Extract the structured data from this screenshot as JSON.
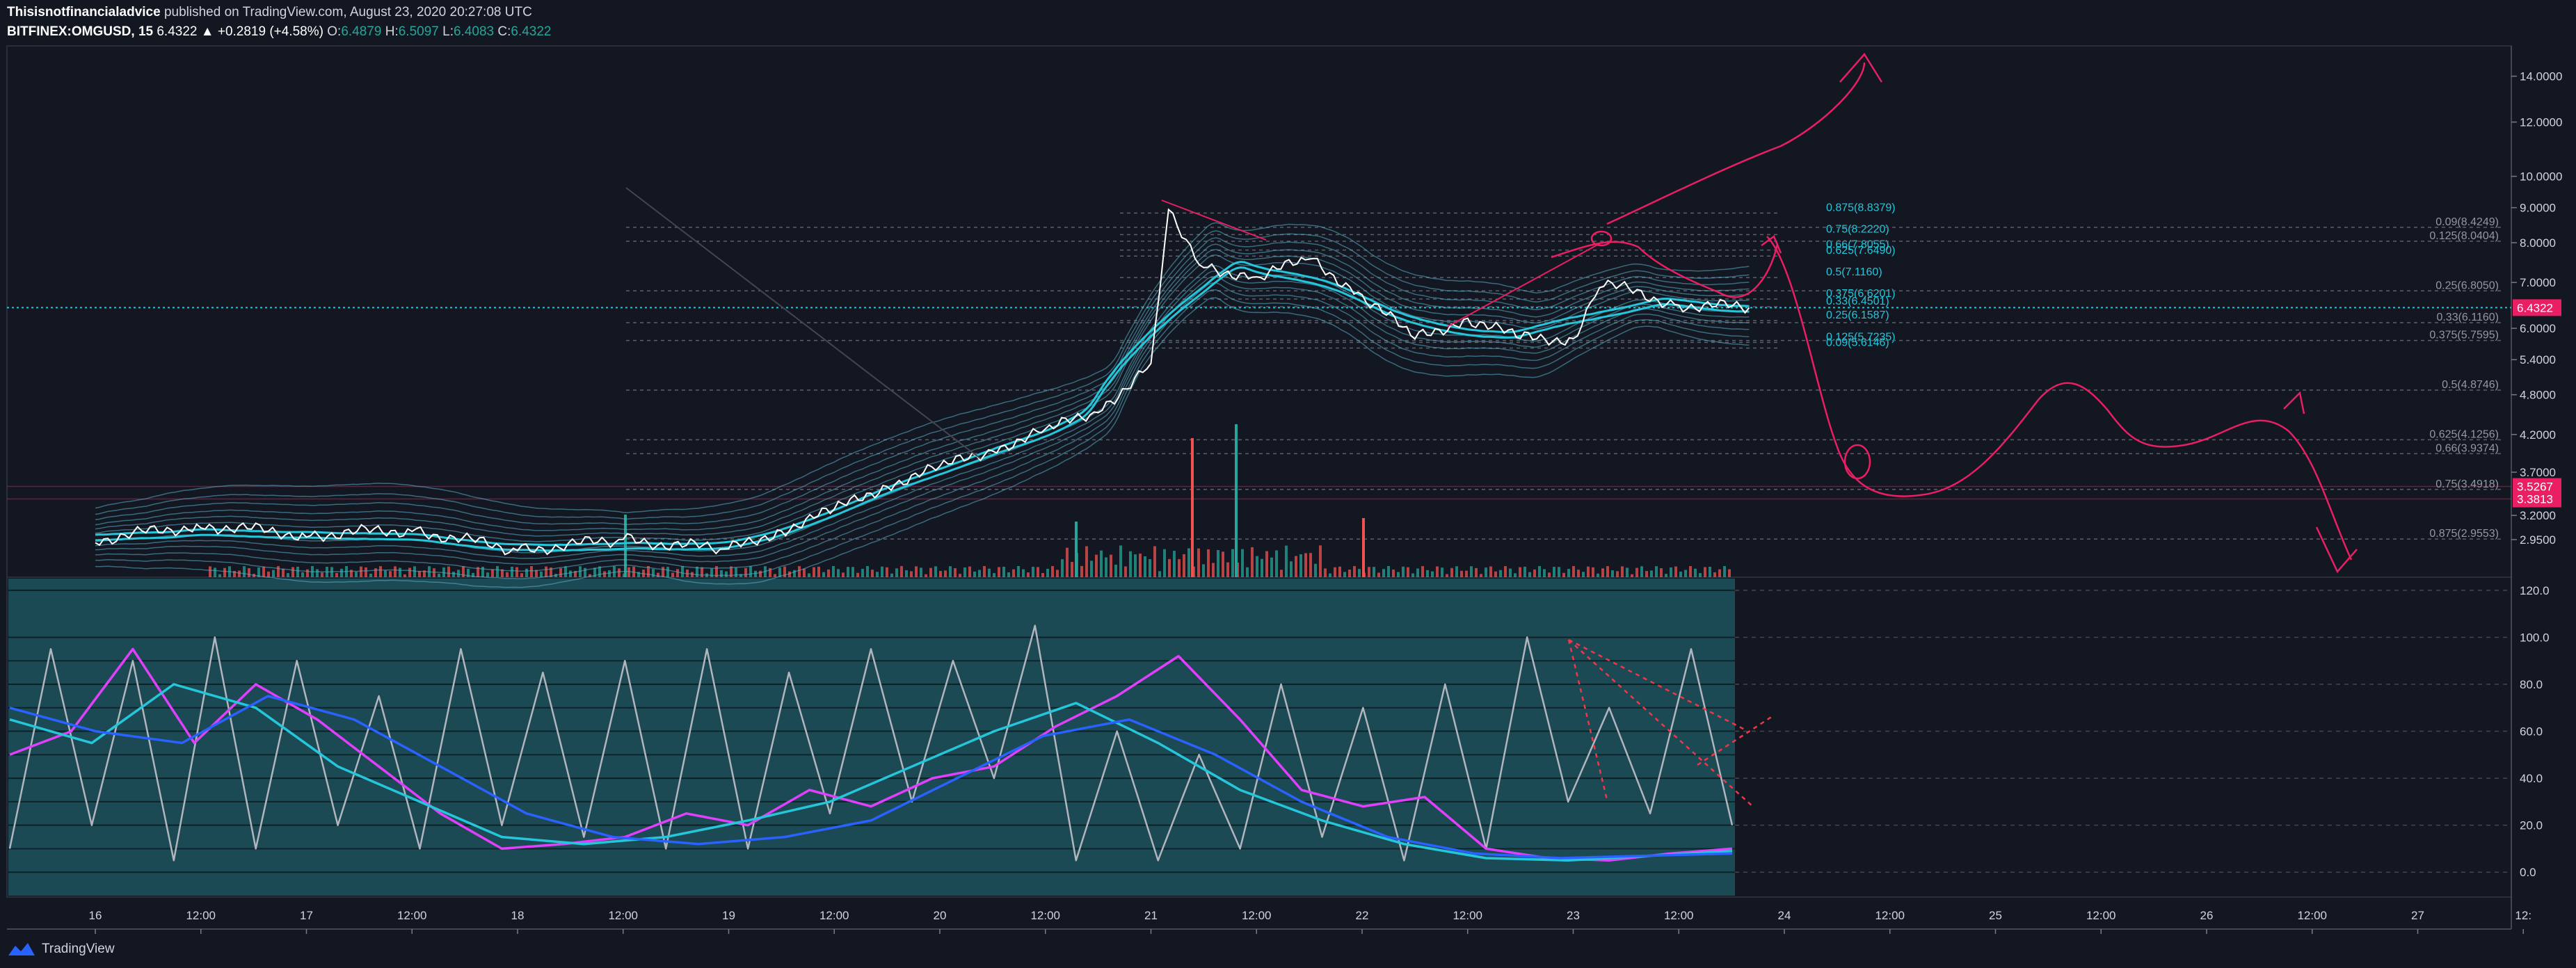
{
  "header": {
    "publisher": "Thisisnotfinancialadvice",
    "published_text": "published on TradingView.com, August 23, 2020 20:27:08 UTC",
    "symbol": "BITFINEX:OMGUSD, 15",
    "last": "6.4322",
    "change": "▲ +0.2819 (+4.58%)",
    "o_label": "O:",
    "o_value": "6.4879",
    "h_label": "H:",
    "h_value": "6.5097",
    "l_label": "L:",
    "l_value": "6.4083",
    "c_label": "C:",
    "c_value": "6.4322"
  },
  "footer": {
    "brand": "TradingView"
  },
  "colors": {
    "background": "#131722",
    "oscillator_panel": "#1b4a55",
    "price_tag": "#e91e63",
    "fib_label": "#26c6da",
    "drawing": "#e91e63",
    "stoch_k": "#b2b5be",
    "stoch_d": "#363a45",
    "rsi_ma": "#e040fb",
    "teal_ma": "#26c6da",
    "blue_ma": "#2962ff"
  },
  "chart_data": [
    {
      "type": "line",
      "panel": "price",
      "y_scale": "log",
      "ylim": [
        2.6,
        15.5
      ],
      "x_labels": [
        "16",
        "12:00",
        "17",
        "12:00",
        "18",
        "12:00",
        "19",
        "12:00",
        "20",
        "12:00",
        "21",
        "12:00",
        "22",
        "12:00",
        "23",
        "12:00",
        "24",
        "12:00",
        "25",
        "12:00",
        "26",
        "12:00",
        "27",
        "12:"
      ],
      "y_ticks": [
        "14.0000",
        "12.0000",
        "10.0000",
        "9.0000",
        "8.0000",
        "7.0000",
        "6.0000",
        "5.4000",
        "4.8000",
        "4.2000",
        "3.7000",
        "3.2000",
        "2.9500"
      ],
      "price_tags": [
        {
          "label": "6.4322",
          "value": 6.4322
        },
        {
          "label": "3.5267",
          "value": 3.5267
        },
        {
          "label": "3.3813",
          "value": 3.3813
        }
      ],
      "price_series": {
        "x": [
          "16 00:00",
          "16 12:00",
          "17 00:00",
          "17 12:00",
          "18 00:00",
          "18 12:00",
          "19 00:00",
          "19 06:00",
          "19 12:00",
          "19 18:00",
          "20 00:00",
          "20 06:00",
          "20 12:00",
          "20 18:00",
          "21 00:00",
          "21 02:00",
          "21 06:00",
          "21 12:00",
          "21 18:00",
          "22 00:00",
          "22 06:00",
          "22 12:00",
          "22 18:00",
          "23 00:00",
          "23 03:00",
          "23 12:00",
          "23 20:00"
        ],
        "values": [
          2.95,
          3.1,
          3.0,
          3.05,
          2.85,
          2.95,
          2.85,
          3.05,
          3.25,
          3.55,
          3.75,
          4.0,
          4.25,
          4.55,
          5.3,
          8.9,
          7.4,
          7.1,
          7.6,
          6.7,
          5.8,
          6.2,
          5.8,
          5.8,
          7.0,
          6.5,
          6.43
        ]
      },
      "fib_left": [
        {
          "label": "0.875(8.8379)",
          "value": 8.8379
        },
        {
          "label": "0.75(8.2220)",
          "value": 8.222
        },
        {
          "label": "0.66(7.8055)",
          "value": 7.8055
        },
        {
          "label": "0.625(7.6490)",
          "value": 7.649
        },
        {
          "label": "0.5(7.1160)",
          "value": 7.116
        },
        {
          "label": "0.375(6.6201)",
          "value": 6.6201
        },
        {
          "label": "0.33(6.4501)",
          "value": 6.4501
        },
        {
          "label": "0.25(6.1587)",
          "value": 6.1587
        },
        {
          "label": "0.125(5.7235)",
          "value": 5.7235
        },
        {
          "label": "0.09(5.6146)",
          "value": 5.6146
        }
      ],
      "fib_right": [
        {
          "label": "0.09(8.4249)",
          "value": 8.4249
        },
        {
          "label": "0.125(8.0404)",
          "value": 8.0404
        },
        {
          "label": "0.25(6.8050)",
          "value": 6.805
        },
        {
          "label": "0.33(6.1160)",
          "value": 6.116
        },
        {
          "label": "0.375(5.7595)",
          "value": 5.7595
        },
        {
          "label": "0.5(4.8746)",
          "value": 4.8746
        },
        {
          "label": "0.625(4.1256)",
          "value": 4.1256
        },
        {
          "label": "0.66(3.9374)",
          "value": 3.9374
        },
        {
          "label": "0.75(3.4918)",
          "value": 3.4918
        },
        {
          "label": "0.875(2.9553)",
          "value": 2.9553
        }
      ]
    },
    {
      "type": "line",
      "panel": "oscillator",
      "ylim": [
        -10,
        125
      ],
      "y_ticks": [
        "120.0",
        "100.0",
        "80.0",
        "60.0",
        "40.0",
        "20.0",
        "0.0"
      ],
      "series": [
        {
          "color": "#b2b5be",
          "values": [
            10,
            95,
            20,
            90,
            5,
            100,
            10,
            90,
            20,
            75,
            10,
            95,
            20,
            85,
            15,
            90,
            10,
            95,
            10,
            85,
            25,
            95,
            30,
            90,
            40,
            105,
            5,
            60,
            5,
            50,
            10,
            80,
            15,
            70,
            5,
            80,
            10,
            100,
            30,
            70,
            25,
            95,
            20
          ]
        },
        {
          "color": "#e040fb",
          "values": [
            50,
            60,
            95,
            55,
            80,
            65,
            45,
            25,
            10,
            12,
            15,
            25,
            20,
            35,
            28,
            40,
            45,
            62,
            75,
            92,
            65,
            35,
            28,
            32,
            10,
            6,
            5,
            8,
            10
          ]
        },
        {
          "color": "#26c6da",
          "values": [
            65,
            55,
            80,
            70,
            45,
            30,
            15,
            12,
            15,
            22,
            30,
            45,
            60,
            72,
            55,
            35,
            22,
            12,
            6,
            5,
            7,
            9
          ]
        },
        {
          "color": "#2962ff",
          "values": [
            70,
            60,
            55,
            75,
            65,
            45,
            25,
            15,
            12,
            15,
            22,
            40,
            58,
            65,
            50,
            30,
            15,
            8,
            6,
            7,
            8
          ]
        }
      ]
    }
  ]
}
